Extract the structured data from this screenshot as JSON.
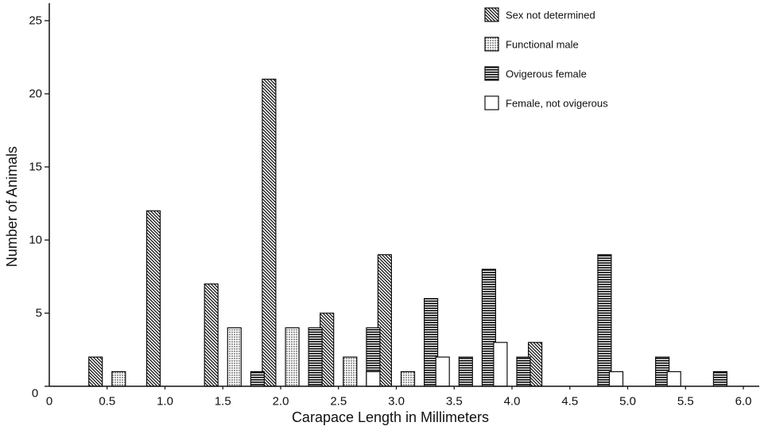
{
  "chart_data": {
    "type": "bar",
    "xlabel": "Carapace Length in Millimeters",
    "ylabel": "Number of Animals",
    "ylim": [
      0,
      26
    ],
    "xlim": [
      0,
      6
    ],
    "yticks": [
      "0",
      "5",
      "10",
      "15",
      "20",
      "25"
    ],
    "xticks": [
      "0.5",
      "1.0",
      "1.5",
      "2.0",
      "2.5",
      "3.0",
      "3.5",
      "4.0",
      "4.5",
      "5.0",
      "5.5",
      "6.0"
    ],
    "x_start_label": "0",
    "grid": false,
    "legend_position": "top-right",
    "series": [
      {
        "name": "Sex not determined",
        "pattern": "diagonal-hatch",
        "points": [
          {
            "x": 0.4,
            "y": 2
          },
          {
            "x": 0.9,
            "y": 12
          },
          {
            "x": 1.4,
            "y": 7
          },
          {
            "x": 1.9,
            "y": 21
          },
          {
            "x": 2.4,
            "y": 5
          },
          {
            "x": 2.9,
            "y": 9
          },
          {
            "x": 4.2,
            "y": 3
          }
        ]
      },
      {
        "name": "Functional male",
        "pattern": "dots",
        "points": [
          {
            "x": 0.6,
            "y": 1
          },
          {
            "x": 1.6,
            "y": 4
          },
          {
            "x": 2.1,
            "y": 4
          },
          {
            "x": 2.6,
            "y": 2
          },
          {
            "x": 3.1,
            "y": 1
          }
        ]
      },
      {
        "name": "Ovigerous female",
        "pattern": "horizontal-lines",
        "points": [
          {
            "x": 1.8,
            "y": 1
          },
          {
            "x": 2.3,
            "y": 4
          },
          {
            "x": 2.8,
            "y": 4
          },
          {
            "x": 3.3,
            "y": 6
          },
          {
            "x": 3.6,
            "y": 2
          },
          {
            "x": 3.8,
            "y": 8
          },
          {
            "x": 4.1,
            "y": 2
          },
          {
            "x": 4.8,
            "y": 9
          },
          {
            "x": 5.3,
            "y": 2
          },
          {
            "x": 5.8,
            "y": 1
          }
        ]
      },
      {
        "name": "Female, not ovigerous",
        "pattern": "open",
        "points": [
          {
            "x": 2.8,
            "y": 1
          },
          {
            "x": 3.4,
            "y": 2
          },
          {
            "x": 3.9,
            "y": 3
          },
          {
            "x": 4.9,
            "y": 1
          },
          {
            "x": 5.4,
            "y": 1
          }
        ]
      }
    ]
  }
}
